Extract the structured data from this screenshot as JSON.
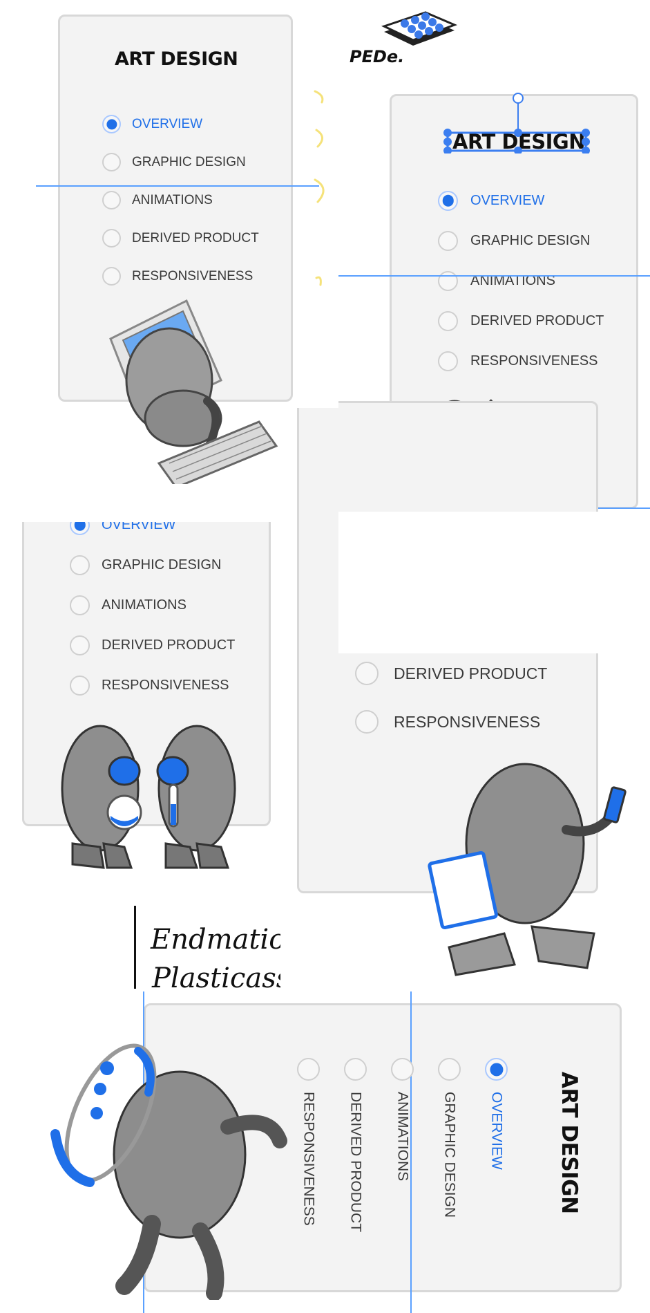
{
  "brand": {
    "logo_text": "PEDe.",
    "icon": "stacked-dots-tray-icon"
  },
  "menu": {
    "title": "ART DESIGN",
    "items": [
      "OVERVIEW",
      "GRAPHIC DESIGN",
      "ANIMATIONS",
      "DERIVED PRODUCT",
      "RESPONSIVENESS"
    ],
    "active_index": 0
  },
  "handwriting": [
    "Endmation",
    "Plasticass"
  ],
  "colors": {
    "accent": "#1f6fe8",
    "card_bg": "#f3f3f3",
    "card_border": "#d8d8d8",
    "guide": "#5aa0ff",
    "deco_yellow": "#f5e27a"
  },
  "icons": [
    "computer-mascot-icon",
    "speech-bubble-mascots-icon",
    "flask-mascots-icon",
    "clipboard-mascot-icon",
    "hoop-mascot-icon"
  ]
}
